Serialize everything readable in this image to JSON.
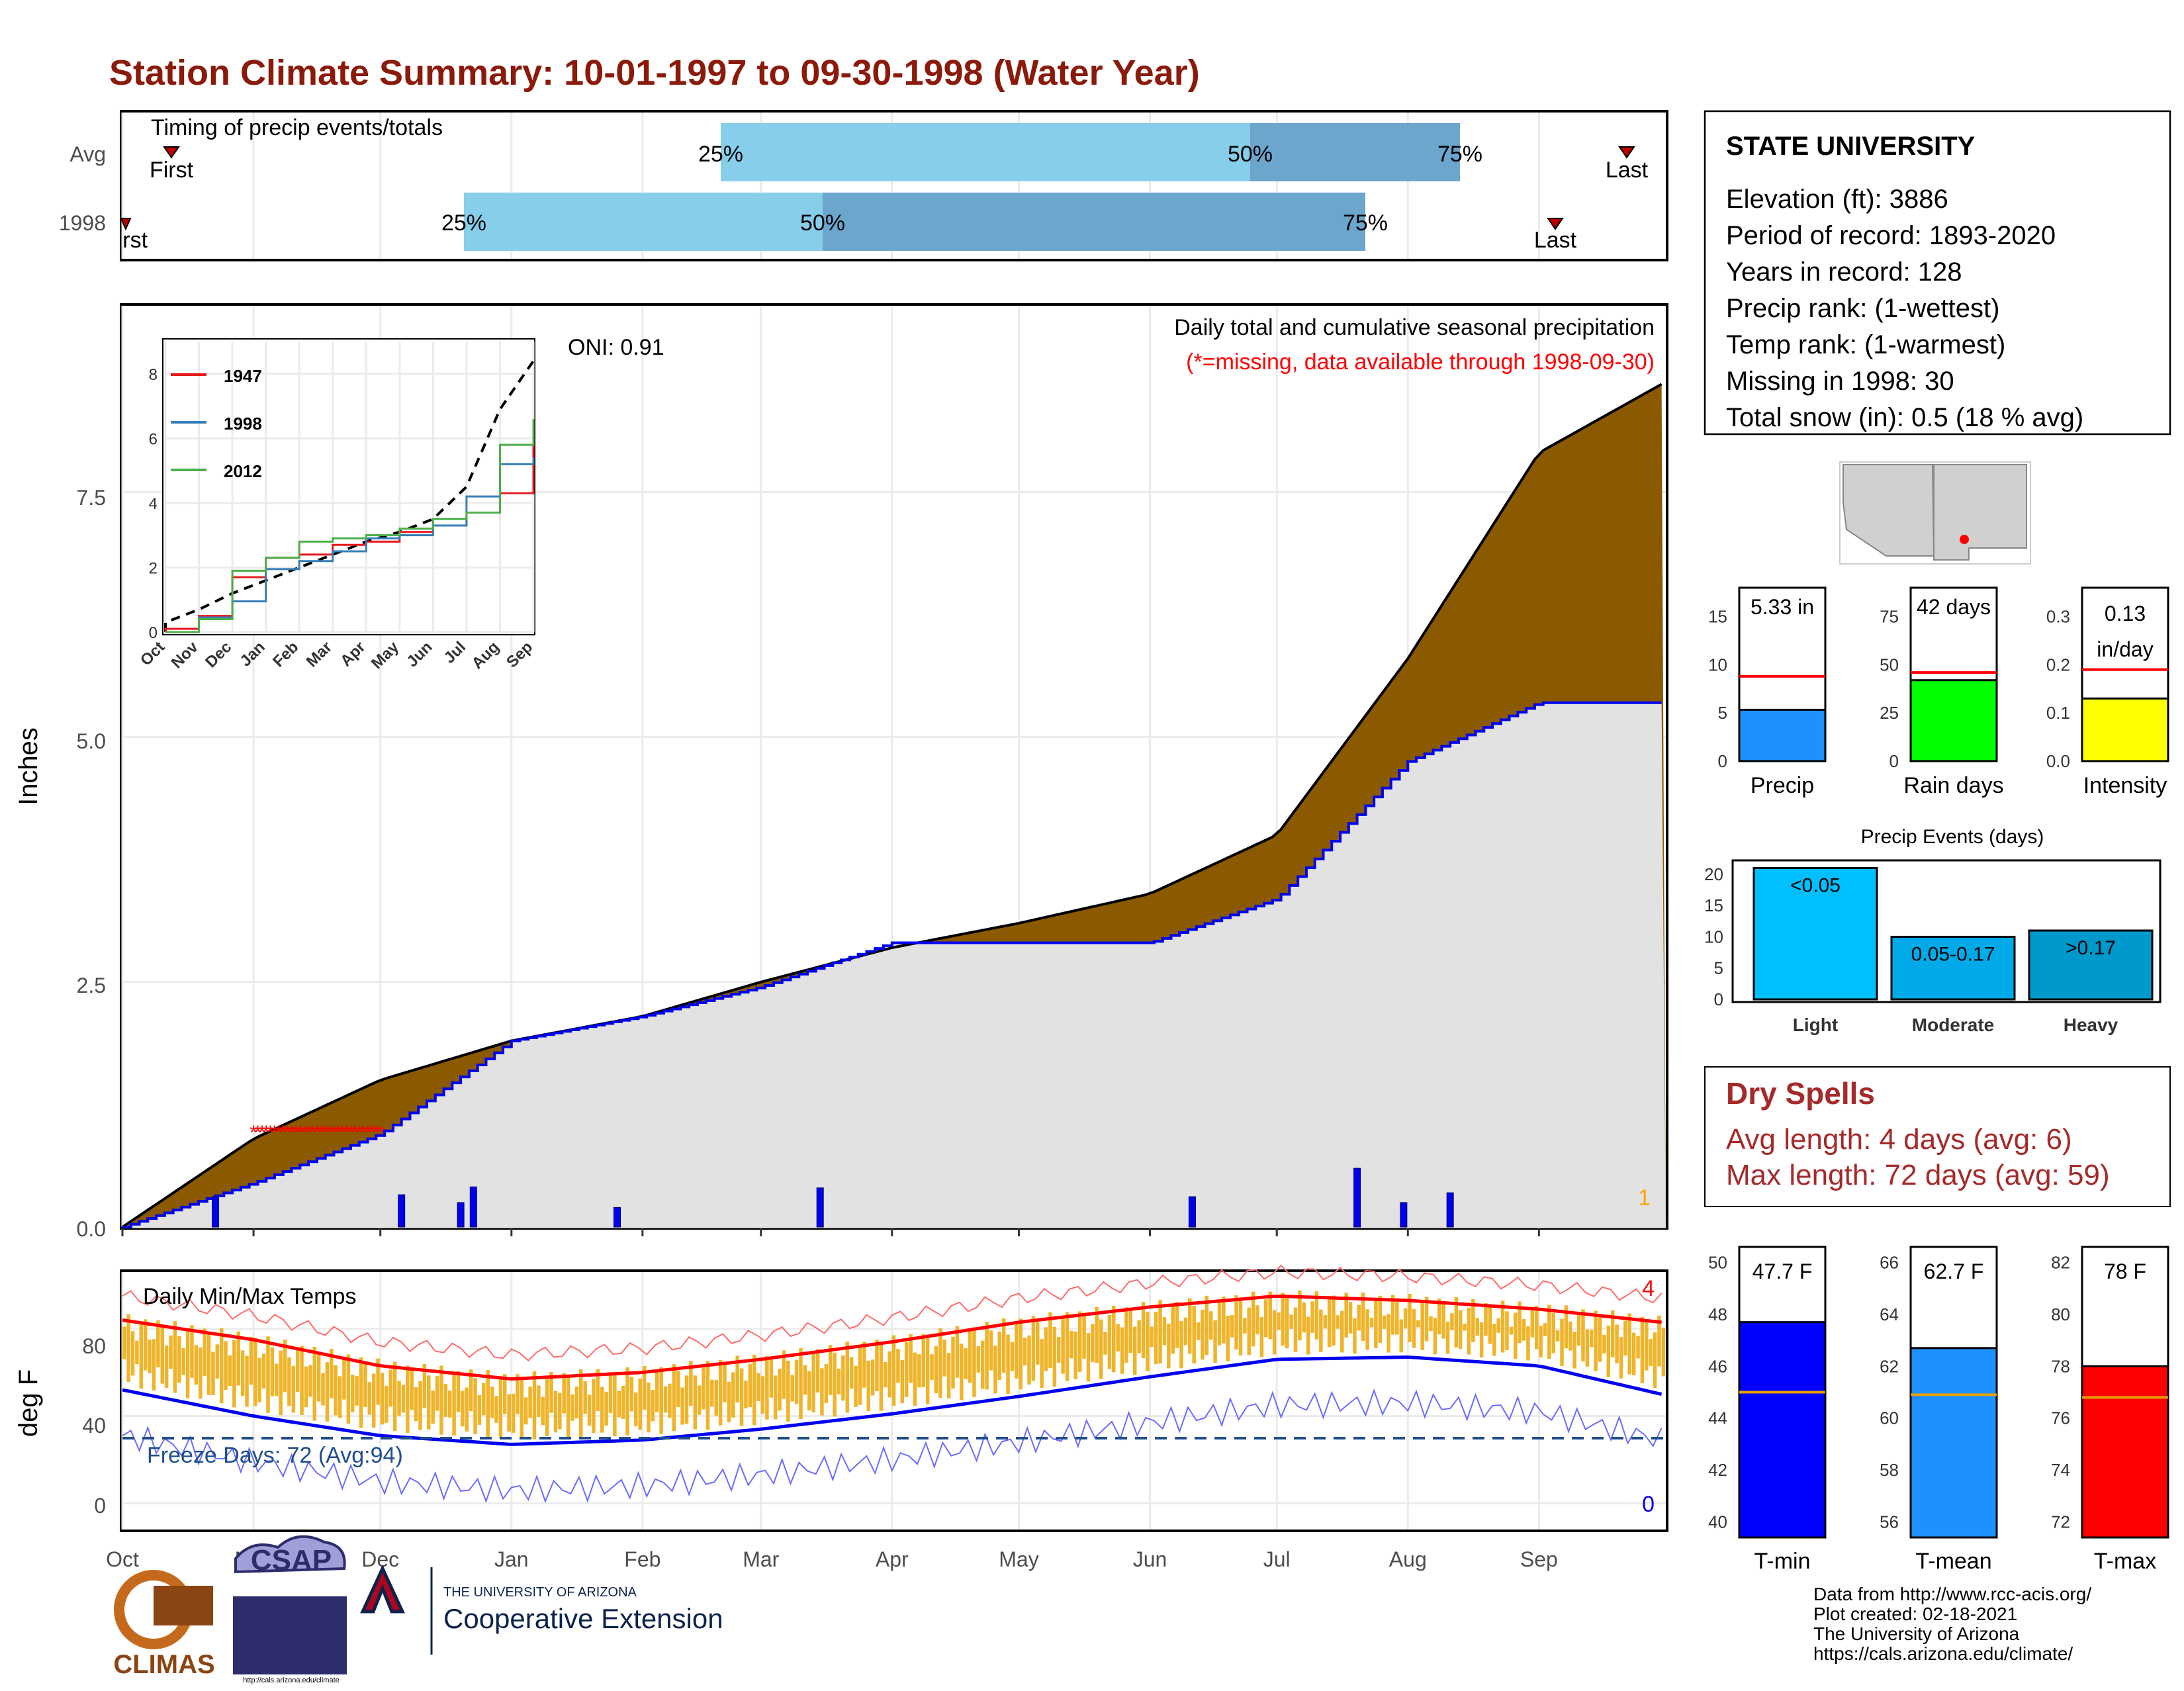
{
  "title": "Station Climate Summary: 10-01-1997 to 09-30-1998 (Water Year)",
  "timing": {
    "label": "Timing of precip events/totals",
    "rows": [
      {
        "name": "Avg",
        "first_label": "First",
        "last_label": "Last",
        "p25": "25%",
        "p50": "50%",
        "p75": "75%"
      },
      {
        "name": "1998",
        "first_label": "First",
        "last_label": "Last",
        "p25": "25%",
        "p50": "50%",
        "p75": "75%"
      }
    ]
  },
  "precip_panel": {
    "title": "Daily total and cumulative seasonal precipitation",
    "subtitle": "(*=missing, data available through 1998-09-30)",
    "oni": "ONI: 0.91",
    "ylabel": "Inches",
    "yticks": [
      "0.0",
      "2.5",
      "5.0",
      "7.5"
    ],
    "corner_count": "1"
  },
  "temp_panel": {
    "title": "Daily Min/Max Temps",
    "ylabel": "deg F",
    "yticks": [
      "0",
      "40",
      "80"
    ],
    "freeze": "Freeze Days: 72 (Avg:94)",
    "count_top": "4",
    "count_bottom": "0"
  },
  "months": [
    "Oct",
    "Nov",
    "Dec",
    "Jan",
    "Feb",
    "Mar",
    "Apr",
    "May",
    "Jun",
    "Jul",
    "Aug",
    "Sep"
  ],
  "inset": {
    "legend": [
      "1947",
      "1998",
      "2012"
    ],
    "legend_colors": [
      "#e41a1c",
      "#377eb8",
      "#4daf4a"
    ],
    "yticks": [
      "0",
      "2",
      "4",
      "6",
      "8"
    ],
    "months": [
      "Oct",
      "Nov",
      "Dec",
      "Jan",
      "Feb",
      "Mar",
      "Apr",
      "May",
      "Jun",
      "Jul",
      "Aug",
      "Sep"
    ]
  },
  "station": {
    "name": "STATE UNIVERSITY",
    "lines": [
      "Elevation (ft): 3886",
      "Period of record: 1893-2020",
      "Years in record: 128",
      "Precip rank:  (1-wettest)",
      "Temp rank:  (1-warmest)",
      "Missing in 1998: 30",
      "Total snow (in): 0.5 (18 % avg)"
    ]
  },
  "mini_bars": [
    {
      "label": "Precip",
      "value_text": "5.33 in",
      "yticks": [
        "0",
        "5",
        "10",
        "15"
      ],
      "color": "#1e90ff"
    },
    {
      "label": "Rain days",
      "value_text": "42 days",
      "yticks": [
        "0",
        "25",
        "50",
        "75"
      ],
      "color": "#00ff00"
    },
    {
      "label": "Intensity",
      "value_text_1": "0.13",
      "value_text_2": "in/day",
      "yticks": [
        "0.0",
        "0.1",
        "0.2",
        "0.3"
      ],
      "color": "#ffff00"
    }
  ],
  "events": {
    "title": "Precip Events (days)",
    "yticks": [
      "0",
      "5",
      "10",
      "15",
      "20"
    ],
    "bars": [
      {
        "label": "Light",
        "inner": "<0.05",
        "color": "#00bfff"
      },
      {
        "label": "Moderate",
        "inner": "0.05-0.17",
        "color": "#00aae8"
      },
      {
        "label": "Heavy",
        "inner": ">0.17",
        "color": "#0099cc"
      }
    ]
  },
  "dry_spells": {
    "title": "Dry Spells",
    "line1": "Avg length: 4 days (avg: 6)",
    "line2": "Max length: 72 days (avg: 59)"
  },
  "temp_bars": [
    {
      "label": "T-min",
      "value_text": "47.7 F",
      "yticks": [
        "40",
        "42",
        "44",
        "46",
        "48",
        "50"
      ],
      "color": "#0000ff"
    },
    {
      "label": "T-mean",
      "value_text": "62.7 F",
      "yticks": [
        "56",
        "58",
        "60",
        "62",
        "64",
        "66"
      ],
      "color": "#1e90ff"
    },
    {
      "label": "T-max",
      "value_text": "78 F",
      "yticks": [
        "72",
        "74",
        "76",
        "78",
        "80",
        "82"
      ],
      "color": "#ff0000"
    }
  ],
  "footer": {
    "lines": [
      "Data from http://www.rcc-acis.org/",
      "Plot created: 02-18-2021",
      "The University of Arizona",
      "https://cals.arizona.edu/climate/"
    ],
    "logo1": "CLIMAS",
    "logo2": "CSAP",
    "logo2_url": "http://cals.arizona.edu/climate",
    "logo3_top": "THE UNIVERSITY OF ARIZONA",
    "logo3_bottom": "Cooperative Extension"
  },
  "chart_data": [
    {
      "type": "bar",
      "title": "Timing of precip events/totals",
      "categories": [
        "Avg",
        "1998"
      ],
      "series": [
        {
          "name": "First",
          "values": [
            "1997-10-13",
            "1997-10-01"
          ]
        },
        {
          "name": "25%",
          "values": [
            "1998-02-23",
            "1997-12-21"
          ]
        },
        {
          "name": "50%",
          "values": [
            "1998-06-27",
            "1998-03-15"
          ]
        },
        {
          "name": "75%",
          "values": [
            "1998-08-07",
            "1998-07-23"
          ]
        },
        {
          "name": "Last",
          "values": [
            "1998-09-27",
            "1998-09-10"
          ]
        }
      ]
    },
    {
      "type": "area",
      "title": "Daily total and cumulative seasonal precipitation",
      "ylabel": "Inches",
      "ylim": [
        0,
        9.4
      ],
      "x": [
        "10-01",
        "11-01",
        "12-01",
        "01-01",
        "02-01",
        "03-01",
        "04-01",
        "05-01",
        "06-01",
        "07-01",
        "08-01",
        "09-01",
        "09-30"
      ],
      "series": [
        {
          "name": "",
          "values": [
            0.0,
            0.9,
            1.5,
            1.9,
            2.15,
            2.5,
            2.85,
            3.1,
            3.4,
            4.0,
            5.8,
            7.9,
            8.6
          ]
        },
        {
          "name": "",
          "values": [
            0.0,
            0.45,
            0.95,
            1.9,
            2.15,
            2.45,
            2.9,
            2.9,
            2.9,
            3.35,
            4.75,
            5.35,
            5.35
          ]
        }
      ],
      "daily_precip": [
        {
          "date": "10-23",
          "value": 0.31
        },
        {
          "date": "12-06",
          "value": 0.33
        },
        {
          "date": "12-20",
          "value": 0.25
        },
        {
          "date": "12-23",
          "value": 0.41
        },
        {
          "date": "01-26",
          "value": 0.2
        },
        {
          "date": "03-15",
          "value": 0.4
        },
        {
          "date": "06-11",
          "value": 0.31
        },
        {
          "date": "07-20",
          "value": 0.6
        },
        {
          "date": "07-31",
          "value": 0.25
        },
        {
          "date": "08-11",
          "value": 0.35
        }
      ],
      "missing_period": [
        "11-01",
        "12-01"
      ]
    },
    {
      "type": "line",
      "title": "",
      "x": [
        "Oct",
        "Nov",
        "Dec",
        "Jan",
        "Feb",
        "Mar",
        "Apr",
        "May",
        "Jun",
        "Jul",
        "Aug",
        "Sep"
      ],
      "series": [
        {
          "name": "1947",
          "values": [
            0.1,
            0.5,
            1.7,
            2.3,
            2.4,
            2.7,
            2.8,
            3.1,
            3.3,
            3.7,
            4.3,
            6.0
          ]
        },
        {
          "name": "1998",
          "values": [
            0.0,
            0.45,
            0.95,
            1.95,
            2.2,
            2.5,
            2.9,
            3.0,
            3.3,
            4.2,
            5.2,
            5.4
          ]
        },
        {
          "name": "2012",
          "values": [
            0.0,
            0.4,
            1.9,
            2.3,
            2.8,
            2.9,
            3.0,
            3.2,
            3.5,
            3.7,
            5.8,
            6.6
          ]
        },
        {
          "name": "",
          "values": [
            0.3,
            0.7,
            1.2,
            1.6,
            2.0,
            2.4,
            2.8,
            3.1,
            3.5,
            4.5,
            6.9,
            8.4
          ]
        }
      ]
    },
    {
      "type": "line",
      "title": "Daily Min/Max Temps",
      "ylabel": "deg F",
      "ylim": [
        -12,
        106
      ],
      "x": [
        "Oct",
        "Nov",
        "Dec",
        "Jan",
        "Feb",
        "Mar",
        "Apr",
        "May",
        "Jun",
        "Jul",
        "Aug",
        "Sep",
        "Sep-30"
      ],
      "series": [
        {
          "name": "",
          "values": [
            84,
            75,
            63,
            57,
            60,
            66,
            74,
            83,
            90,
            95,
            93,
            89,
            83
          ]
        },
        {
          "name": "",
          "values": [
            52,
            40,
            31,
            27,
            29,
            34,
            41,
            49,
            58,
            66,
            67,
            63,
            50
          ]
        }
      ],
      "freeze_line": 32
    },
    {
      "type": "bar",
      "categories": [
        "Precip",
        "Rain days",
        "Intensity"
      ],
      "values": [
        5.33,
        42,
        0.13
      ],
      "averages": [
        8.8,
        46,
        0.19
      ]
    },
    {
      "type": "bar",
      "title": "Precip Events (days)",
      "categories": [
        "Light",
        "Moderate",
        "Heavy"
      ],
      "values": [
        21,
        10,
        11
      ],
      "ylim": [
        0,
        22
      ]
    },
    {
      "type": "bar",
      "categories": [
        "T-min",
        "T-mean",
        "T-max"
      ],
      "values": [
        47.7,
        62.7,
        78
      ],
      "averages": [
        45.0,
        60.9,
        76.8
      ]
    }
  ]
}
